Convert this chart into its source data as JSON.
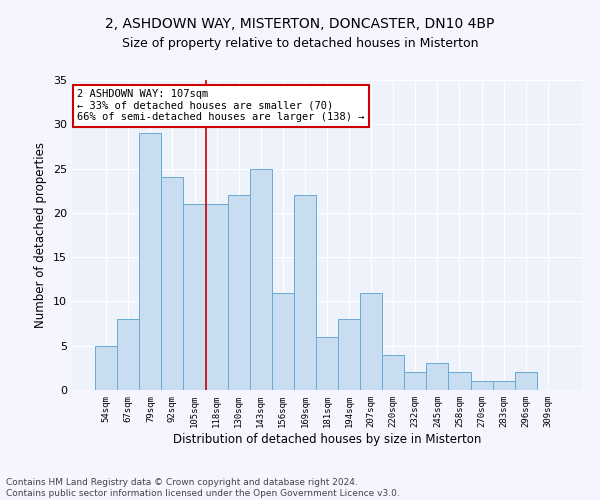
{
  "title1": "2, ASHDOWN WAY, MISTERTON, DONCASTER, DN10 4BP",
  "title2": "Size of property relative to detached houses in Misterton",
  "xlabel": "Distribution of detached houses by size in Misterton",
  "ylabel": "Number of detached properties",
  "bar_labels": [
    "54sqm",
    "67sqm",
    "79sqm",
    "92sqm",
    "105sqm",
    "118sqm",
    "130sqm",
    "143sqm",
    "156sqm",
    "169sqm",
    "181sqm",
    "194sqm",
    "207sqm",
    "220sqm",
    "232sqm",
    "245sqm",
    "258sqm",
    "270sqm",
    "283sqm",
    "296sqm",
    "309sqm"
  ],
  "bar_values": [
    5,
    8,
    29,
    24,
    21,
    21,
    22,
    25,
    11,
    22,
    6,
    8,
    11,
    4,
    2,
    3,
    2,
    1,
    1,
    2,
    0
  ],
  "bar_color": "#c9ddf0",
  "bar_edge_color": "#6aaad4",
  "vline_x": 4.5,
  "vline_color": "#cc0000",
  "annotation_text": "2 ASHDOWN WAY: 107sqm\n← 33% of detached houses are smaller (70)\n66% of semi-detached houses are larger (138) →",
  "annotation_box_color": "#ffffff",
  "annotation_edge_color": "#cc0000",
  "ylim": [
    0,
    35
  ],
  "yticks": [
    0,
    5,
    10,
    15,
    20,
    25,
    30,
    35
  ],
  "footer_text": "Contains HM Land Registry data © Crown copyright and database right 2024.\nContains public sector information licensed under the Open Government Licence v3.0.",
  "bg_color": "#eef2fa",
  "grid_color": "#ffffff",
  "title1_fontsize": 10,
  "title2_fontsize": 9,
  "xlabel_fontsize": 8.5,
  "ylabel_fontsize": 8.5,
  "footer_fontsize": 6.5,
  "annotation_fontsize": 7.5
}
